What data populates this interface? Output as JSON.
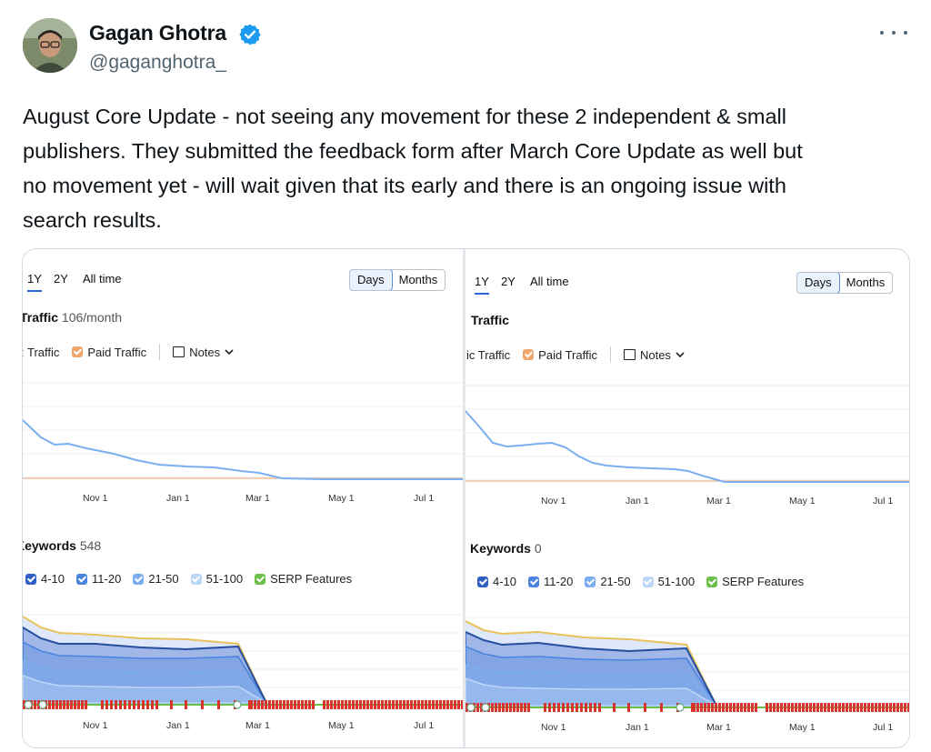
{
  "author": {
    "name": "Gagan Ghotra",
    "handle": "@gaganghotra_"
  },
  "tweet": {
    "text": "August Core Update - not seeing any movement for these 2 independent & small\npublishers. They submitted the feedback form after March Core Update as well but\nno movement yet - will wait given that its early and there is an ongoing issue with\nsearch results."
  },
  "colors": {
    "verified": "#1d9bf0",
    "traffic_line": "#7aaef0",
    "paid_line": "#f0b48a",
    "kw_4_10": "#2f5fc4",
    "kw_11_20": "#4a84e0",
    "kw_21_50": "#7aaef0",
    "kw_51_100": "#bcd6f7",
    "serp": "#6cc04a",
    "top_line": "#e8c15a",
    "marker": "#d9342b"
  },
  "icons": [
    "verified-badge-icon",
    "more-options-icon",
    "notes-icon",
    "chevron-down-icon",
    "checkbox-icon"
  ],
  "screenshots": [
    {
      "ranges": [
        "1Y",
        "2Y",
        "All time"
      ],
      "active_range": "1Y",
      "granularity": [
        "Days",
        "Months"
      ],
      "active_granularity": "Days",
      "traffic_title": "Traffic",
      "traffic_value": "106/month",
      "legend_traffic": ": Traffic",
      "legend_paid": "Paid Traffic",
      "notes_label": "Notes",
      "traffic_ticks": [
        "Nov 1",
        "Jan 1",
        "Mar 1",
        "May 1",
        "Jul 1"
      ],
      "keywords_title": "Keywords",
      "keywords_value": "548",
      "kw_legend": [
        "4-10",
        "11-20",
        "21-50",
        "51-100",
        "SERP Features"
      ],
      "keywords_ticks": [
        "Nov 1",
        "Jan 1",
        "Mar 1",
        "May 1",
        "Jul 1"
      ]
    },
    {
      "ranges": [
        "1Y",
        "2Y",
        "All time"
      ],
      "active_range": "1Y",
      "granularity": [
        "Days",
        "Months"
      ],
      "active_granularity": "Days",
      "traffic_title": "Traffic",
      "traffic_value": "",
      "legend_traffic": "ic Traffic",
      "legend_paid": "Paid Traffic",
      "notes_label": "Notes",
      "traffic_ticks": [
        "Nov 1",
        "Jan 1",
        "Mar 1",
        "May 1",
        "Jul 1"
      ],
      "keywords_title": "Keywords",
      "keywords_value": "0",
      "kw_legend": [
        "4-10",
        "11-20",
        "21-50",
        "51-100",
        "SERP Features"
      ],
      "keywords_ticks": [
        "Nov 1",
        "Jan 1",
        "Mar 1",
        "May 1",
        "Jul 1"
      ]
    }
  ]
}
